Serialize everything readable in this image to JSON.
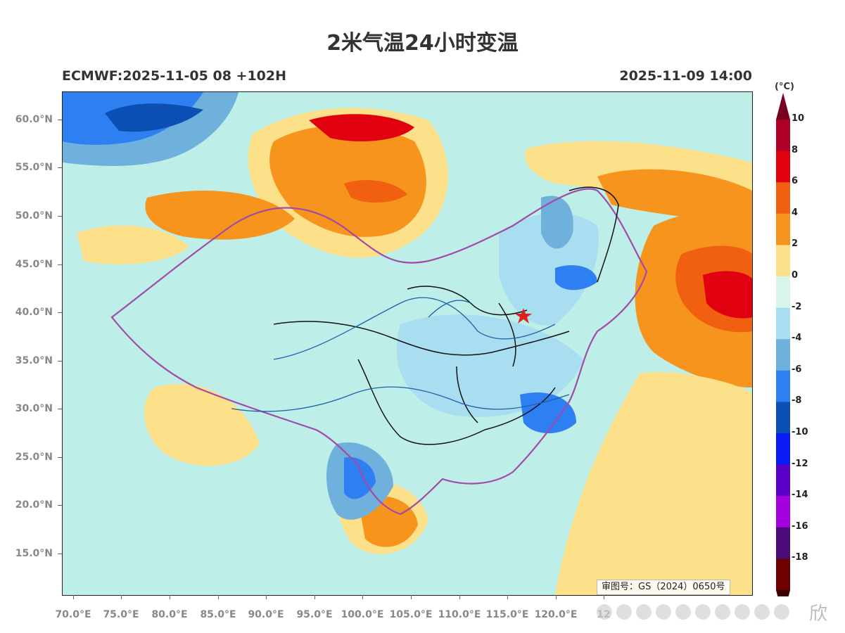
{
  "title": "2米气温24小时变温",
  "model_run": "ECMWF:2025-11-05 08 +102H",
  "valid_time": "2025-11-09 14:00",
  "approval_number": "审图号：GS（2024）0650号",
  "watermark_char": "欣",
  "lat_labels": [
    "60.0°N",
    "55.0°N",
    "50.0°N",
    "45.0°N",
    "40.0°N",
    "35.0°N",
    "30.0°N",
    "25.0°N",
    "20.0°N",
    "15.0°N"
  ],
  "lon_labels": [
    "70.0°E",
    "75.0°E",
    "80.0°E",
    "85.0°E",
    "90.0°E",
    "95.0°E",
    "100.0°E",
    "105.0°E",
    "110.0°E",
    "115.0°E",
    "120.0°E",
    "12"
  ],
  "colorbar": {
    "unit": "(°C)",
    "labels": [
      "10",
      "8",
      "6",
      "4",
      "2",
      "0",
      "-2",
      "-4",
      "-6",
      "-8",
      "-10",
      "-12",
      "-14",
      "-16",
      "-18"
    ],
    "colors": [
      "#b0002a",
      "#e00010",
      "#f06010",
      "#f7941d",
      "#fde08a",
      "#d7f7ec",
      "#a9ddf0",
      "#6fb0dc",
      "#2d7ff2",
      "#0b4fb5",
      "#0a1cf5",
      "#5b00c8",
      "#a700df",
      "#4a0a78",
      "#6e0000"
    ],
    "top_arrow_color": "#7a0020",
    "bottom_arrow_color": "#3a0000"
  },
  "colors": {
    "province_border": "#111111",
    "country_border": "#a24ba6",
    "river": "#1f5fa8",
    "marker": "#e02020"
  }
}
